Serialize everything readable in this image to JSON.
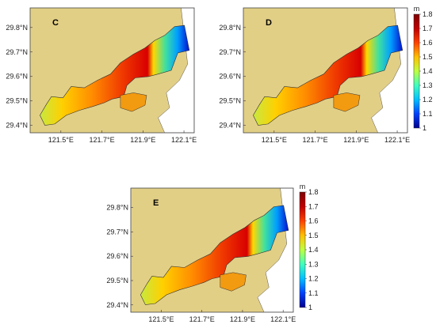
{
  "chart_data": [
    {
      "type": "heatmap",
      "panel": "C",
      "xticks": [
        "121.5°E",
        "121.7°E",
        "121.9°E",
        "122.1°E"
      ],
      "yticks": [
        "29.4°N",
        "29.5°N",
        "29.6°N",
        "29.7°N",
        "29.8°N"
      ],
      "xlim": [
        121.35,
        122.15
      ],
      "ylim": [
        29.37,
        29.88
      ],
      "colorbar": null
    },
    {
      "type": "heatmap",
      "panel": "D",
      "xticks": [
        "121.5°E",
        "121.7°E",
        "121.9°E",
        "122.1°E"
      ],
      "yticks": [
        "29.4°N",
        "29.5°N",
        "29.6°N",
        "29.7°N",
        "29.8°N"
      ],
      "xlim": [
        121.35,
        122.15
      ],
      "ylim": [
        29.37,
        29.88
      ],
      "colorbar": {
        "unit": "m",
        "min": 1,
        "max": 1.8,
        "ticks": [
          "1",
          "1.1",
          "1.2",
          "1.3",
          "1.4",
          "1.5",
          "1.6",
          "1.7",
          "1.8"
        ],
        "colors": [
          "#00008f",
          "#0040ff",
          "#00c0ff",
          "#40ffbf",
          "#bfff40",
          "#ffc000",
          "#ff4000",
          "#c00000",
          "#800000"
        ]
      }
    },
    {
      "type": "heatmap",
      "panel": "E",
      "xticks": [
        "121.5°E",
        "121.7°E",
        "121.9°E",
        "122.1°E"
      ],
      "yticks": [
        "29.4°N",
        "29.5°N",
        "29.6°N",
        "29.7°N",
        "29.8°N"
      ],
      "xlim": [
        121.35,
        122.15
      ],
      "ylim": [
        29.37,
        29.88
      ],
      "colorbar": {
        "unit": "m",
        "min": 1,
        "max": 1.8,
        "ticks": [
          "1",
          "1.1",
          "1.2",
          "1.3",
          "1.4",
          "1.5",
          "1.6",
          "1.7",
          "1.8"
        ],
        "colors": [
          "#00008f",
          "#0040ff",
          "#00c0ff",
          "#40ffbf",
          "#bfff40",
          "#ffc000",
          "#ff4000",
          "#c00000",
          "#800000"
        ]
      }
    }
  ],
  "colors": {
    "land": "#e2cf86",
    "sea": "#ffffff",
    "frame": "#444444"
  }
}
